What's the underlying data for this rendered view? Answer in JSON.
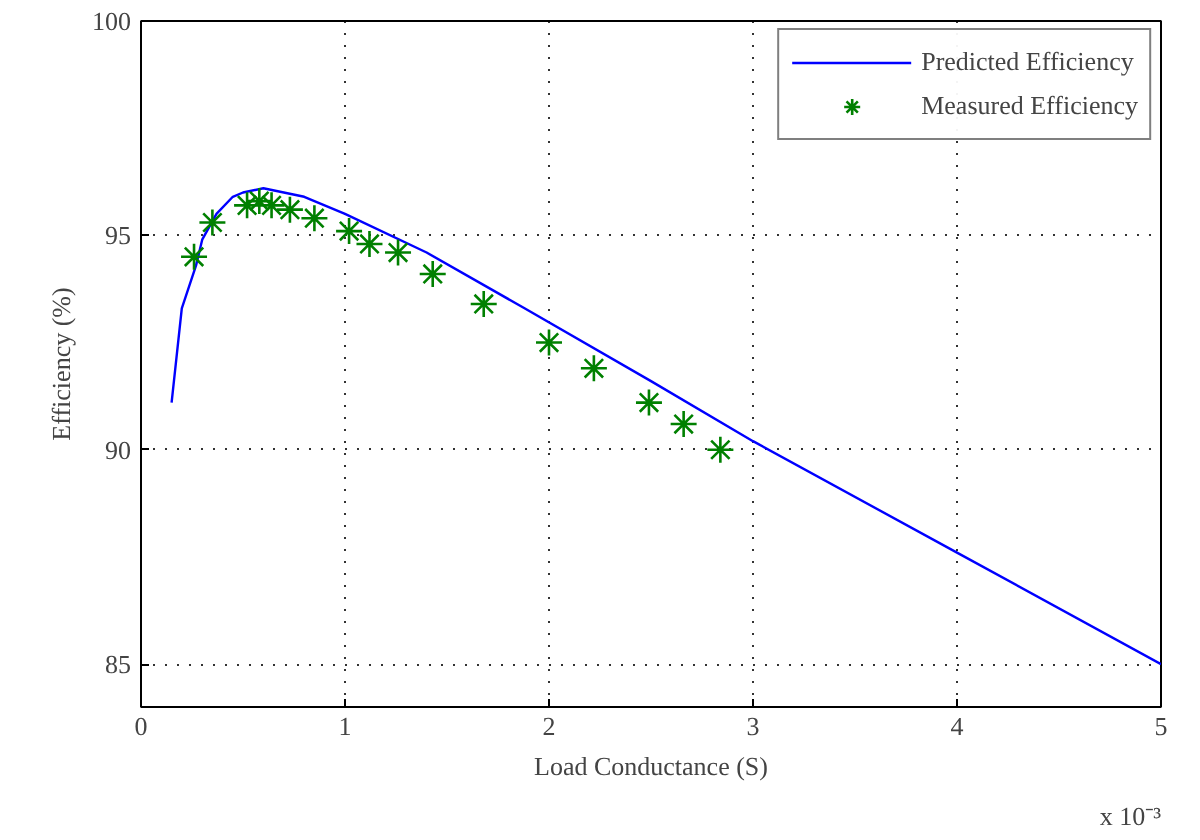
{
  "chart_data": {
    "type": "line",
    "xlabel": "Load Conductance (S)",
    "ylabel": "Efficiency (%)",
    "xlim": [
      0,
      5
    ],
    "ylim": [
      84,
      100
    ],
    "xticks": [
      0,
      1,
      2,
      3,
      4,
      5
    ],
    "yticks": [
      85,
      90,
      95,
      100
    ],
    "annotations": [
      "x 10⁻³"
    ],
    "grid": true,
    "legend": "top right",
    "line_style": "solid",
    "series": [
      {
        "name": "Predicted Efficiency",
        "color": "#0000ff",
        "marker": "none",
        "x": [
          0.15,
          0.2,
          0.27,
          0.3,
          0.37,
          0.45,
          0.5,
          0.6,
          0.7,
          0.8,
          1.0,
          1.4,
          1.88,
          2.5,
          3.0,
          4.0,
          5.0
        ],
        "values": [
          91.1,
          93.3,
          94.3,
          94.9,
          95.5,
          95.9,
          96.0,
          96.1,
          96.0,
          95.9,
          95.5,
          94.6,
          93.3,
          91.6,
          90.2,
          87.6,
          85.0
        ]
      },
      {
        "name": "Measured Efficiency",
        "type": "scatter",
        "color": "#008000",
        "marker": "cross",
        "x": [
          0.26,
          0.35,
          0.52,
          0.58,
          0.64,
          0.73,
          0.85,
          1.02,
          1.12,
          1.26,
          1.43,
          1.68,
          2.0,
          2.22,
          2.49,
          2.66,
          2.84
        ],
        "values": [
          94.5,
          95.3,
          95.7,
          95.8,
          95.7,
          95.6,
          95.4,
          95.1,
          94.8,
          94.6,
          94.1,
          93.4,
          92.5,
          91.9,
          91.1,
          90.6,
          90.0
        ]
      }
    ]
  }
}
